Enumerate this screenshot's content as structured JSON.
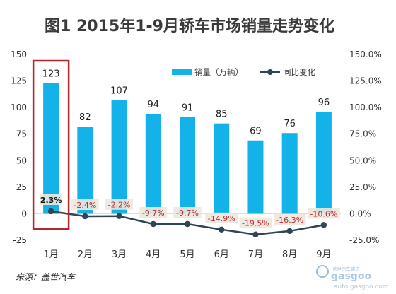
{
  "title": "图1  2015年1-9月轿车市场销量走势变化",
  "source": "来源：盖世汽车",
  "watermark": {
    "brand": "gasgoo",
    "tagline": "盖世汽车资讯",
    "url": "auto.gasgoo.com"
  },
  "colors": {
    "bar": "#13B2E8",
    "line": "#2F4652",
    "label_bg": "#EDE8DD",
    "negative_text": "#C0282D",
    "highlight_box": "#B3272D",
    "title": "#3a3a3a"
  },
  "chart_data": {
    "type": "bar",
    "categories": [
      "1月",
      "2月",
      "3月",
      "4月",
      "5月",
      "6月",
      "7月",
      "8月",
      "9月"
    ],
    "series": [
      {
        "name": "销量（万辆）",
        "type": "bar",
        "axis": "left",
        "values": [
          123,
          82,
          107,
          94,
          91,
          85,
          69,
          76,
          96
        ],
        "labels": [
          "123",
          "82",
          "107",
          "94",
          "91",
          "85",
          "69",
          "76",
          "96"
        ]
      },
      {
        "name": "同比变化",
        "type": "line",
        "axis": "right",
        "values": [
          2.3,
          -2.4,
          -2.2,
          -9.7,
          -9.7,
          -14.9,
          -19.5,
          -16.3,
          -10.6
        ],
        "labels": [
          "2.3%",
          "-2.4%",
          "-2.2%",
          "-9.7%",
          "-9.7%",
          "-14.9%",
          "-19.5%",
          "-16.3%",
          "-10.6%"
        ]
      }
    ],
    "left_axis": {
      "min": -25,
      "max": 150,
      "ticks": [
        -25,
        0,
        25,
        50,
        75,
        100,
        125,
        150
      ],
      "tick_labels": [
        "-25",
        "0",
        "25",
        "50",
        "75",
        "100",
        "125",
        "150"
      ]
    },
    "right_axis": {
      "min": -25,
      "max": 150,
      "ticks": [
        -25,
        0,
        25,
        50,
        75,
        100,
        125,
        150
      ],
      "tick_labels": [
        "-25.0%",
        "0.0%",
        "25.0%",
        "50.0%",
        "75.0%",
        "100.0%",
        "125.0%",
        "150.0%"
      ]
    },
    "grid": false,
    "legend_position": "top-right",
    "highlight_category": "1月"
  }
}
